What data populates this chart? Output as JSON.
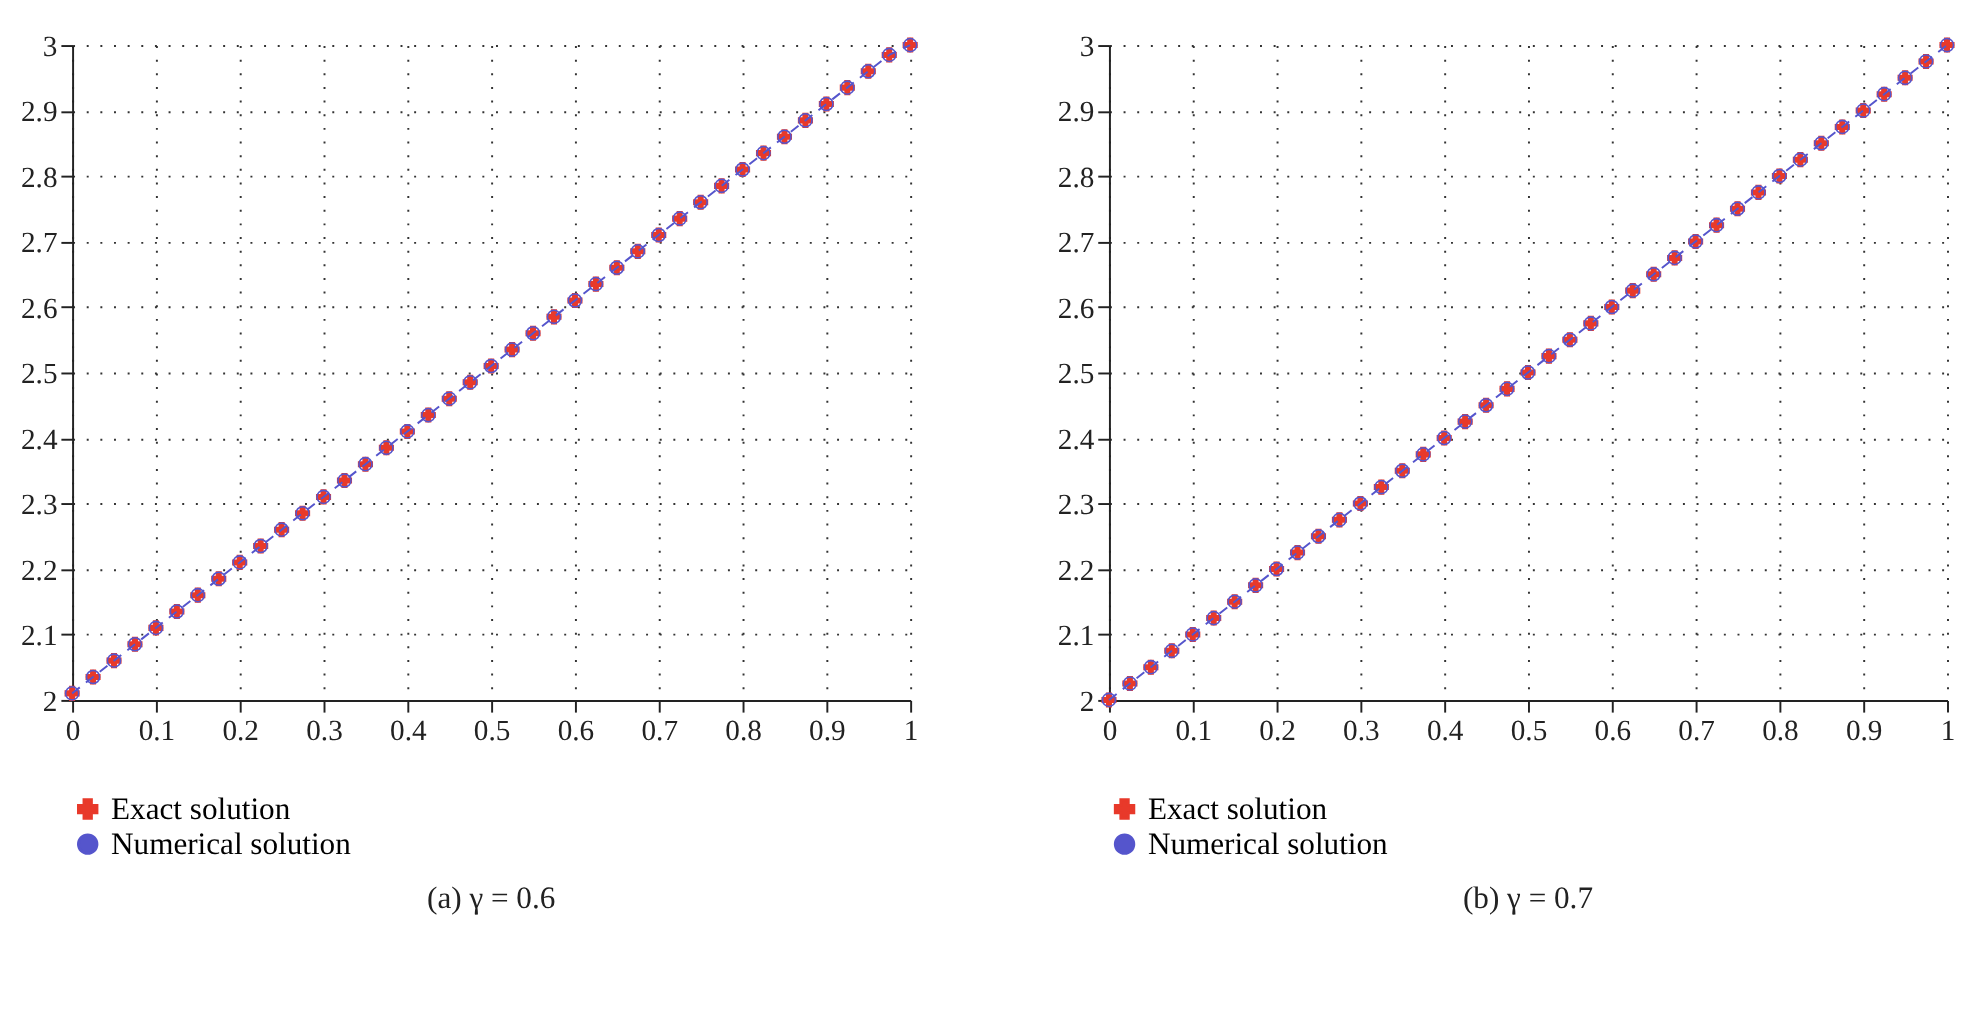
{
  "chart_data": [
    {
      "type": "line",
      "title": "(a) γ = 0.6",
      "xlim": [
        0,
        1
      ],
      "ylim": [
        2,
        3
      ],
      "xticks": [
        0,
        0.1,
        0.2,
        0.3,
        0.4,
        0.5,
        0.6,
        0.7,
        0.8,
        0.9,
        1
      ],
      "yticks": [
        2,
        2.1,
        2.2,
        2.3,
        2.4,
        2.5,
        2.6,
        2.7,
        2.8,
        2.9,
        3
      ],
      "grid": true,
      "legend": "bottom",
      "x": [
        0,
        0.025,
        0.05,
        0.075,
        0.1,
        0.125,
        0.15,
        0.175,
        0.2,
        0.225,
        0.25,
        0.275,
        0.3,
        0.325,
        0.35,
        0.375,
        0.4,
        0.425,
        0.45,
        0.475,
        0.5,
        0.525,
        0.55,
        0.575,
        0.6,
        0.625,
        0.65,
        0.675,
        0.7,
        0.725,
        0.75,
        0.775,
        0.8,
        0.825,
        0.85,
        0.875,
        0.9,
        0.925,
        0.95,
        0.975,
        1
      ],
      "series": [
        {
          "name": "Exact solution",
          "type": "scatter",
          "marker": "cross",
          "color": "#e8392a",
          "values": [
            2.01,
            2.035,
            2.06,
            2.085,
            2.11,
            2.135,
            2.16,
            2.185,
            2.21,
            2.235,
            2.26,
            2.285,
            2.31,
            2.335,
            2.36,
            2.385,
            2.41,
            2.435,
            2.46,
            2.485,
            2.51,
            2.535,
            2.56,
            2.585,
            2.61,
            2.635,
            2.66,
            2.685,
            2.71,
            2.735,
            2.76,
            2.785,
            2.81,
            2.835,
            2.86,
            2.885,
            2.91,
            2.935,
            2.96,
            2.985,
            3.0
          ]
        },
        {
          "name": "Numerical solution",
          "marker": "circle",
          "line_style": "dashed",
          "color": "#5555cc",
          "values": [
            2.01,
            2.035,
            2.06,
            2.085,
            2.11,
            2.135,
            2.16,
            2.185,
            2.21,
            2.235,
            2.26,
            2.285,
            2.31,
            2.335,
            2.36,
            2.385,
            2.41,
            2.435,
            2.46,
            2.485,
            2.51,
            2.535,
            2.56,
            2.585,
            2.61,
            2.635,
            2.66,
            2.685,
            2.71,
            2.735,
            2.76,
            2.785,
            2.81,
            2.835,
            2.86,
            2.885,
            2.91,
            2.935,
            2.96,
            2.985,
            3.0
          ]
        }
      ]
    },
    {
      "type": "line",
      "title": "(b) γ = 0.7",
      "xlim": [
        0,
        1
      ],
      "ylim": [
        2,
        3
      ],
      "xticks": [
        0,
        0.1,
        0.2,
        0.3,
        0.4,
        0.5,
        0.6,
        0.7,
        0.8,
        0.9,
        1
      ],
      "yticks": [
        2,
        2.1,
        2.2,
        2.3,
        2.4,
        2.5,
        2.6,
        2.7,
        2.8,
        2.9,
        3
      ],
      "grid": true,
      "legend": "bottom",
      "x": [
        0,
        0.025,
        0.05,
        0.075,
        0.1,
        0.125,
        0.15,
        0.175,
        0.2,
        0.225,
        0.25,
        0.275,
        0.3,
        0.325,
        0.35,
        0.375,
        0.4,
        0.425,
        0.45,
        0.475,
        0.5,
        0.525,
        0.55,
        0.575,
        0.6,
        0.625,
        0.65,
        0.675,
        0.7,
        0.725,
        0.75,
        0.775,
        0.8,
        0.825,
        0.85,
        0.875,
        0.9,
        0.925,
        0.95,
        0.975,
        1
      ],
      "series": [
        {
          "name": "Exact solution",
          "type": "scatter",
          "marker": "cross",
          "color": "#e8392a",
          "values": [
            2.0,
            2.025,
            2.05,
            2.075,
            2.1,
            2.125,
            2.15,
            2.175,
            2.2,
            2.225,
            2.25,
            2.275,
            2.3,
            2.325,
            2.35,
            2.375,
            2.4,
            2.425,
            2.45,
            2.475,
            2.5,
            2.525,
            2.55,
            2.575,
            2.6,
            2.625,
            2.65,
            2.675,
            2.7,
            2.725,
            2.75,
            2.775,
            2.8,
            2.825,
            2.85,
            2.875,
            2.9,
            2.925,
            2.95,
            2.975,
            3.0
          ]
        },
        {
          "name": "Numerical solution",
          "marker": "circle",
          "line_style": "dashed",
          "color": "#5555cc",
          "values": [
            2.0,
            2.025,
            2.05,
            2.075,
            2.1,
            2.125,
            2.15,
            2.175,
            2.2,
            2.225,
            2.25,
            2.275,
            2.3,
            2.325,
            2.35,
            2.375,
            2.4,
            2.425,
            2.45,
            2.475,
            2.5,
            2.525,
            2.55,
            2.575,
            2.6,
            2.625,
            2.65,
            2.675,
            2.7,
            2.725,
            2.75,
            2.775,
            2.8,
            2.825,
            2.85,
            2.875,
            2.9,
            2.925,
            2.95,
            2.975,
            3.0
          ]
        }
      ]
    }
  ]
}
